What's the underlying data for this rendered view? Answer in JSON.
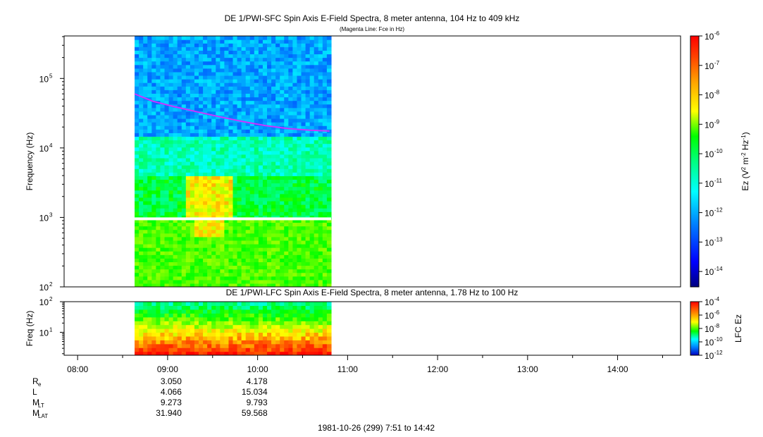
{
  "chart_data": [
    {
      "type": "heatmap",
      "title": "DE 1/PWI-SFC  Spin Axis E-Field Spectra, 8 meter antenna, 104 Hz to 409 kHz",
      "subtitle": "(Magenta Line: Fce in Hz)",
      "ylabel": "Frequency (Hz)",
      "yscale": "log",
      "ylim": [
        100,
        409000
      ],
      "yticks": [
        {
          "base": "10",
          "exp": "2"
        },
        {
          "base": "10",
          "exp": "3"
        },
        {
          "base": "10",
          "exp": "4"
        },
        {
          "base": "10",
          "exp": "5"
        }
      ],
      "xlim": [
        "07:51",
        "14:42"
      ],
      "data_span": [
        "08:38",
        "10:49"
      ],
      "colorbar": {
        "label_parts": [
          "Ez (V",
          "2",
          " m",
          "-2",
          " Hz",
          "-1",
          ")"
        ],
        "scale": "log",
        "range": [
          3e-15,
          1e-06
        ],
        "ticks": [
          "-6",
          "-7",
          "-8",
          "-9",
          "-10",
          "-11",
          "-12",
          "-13",
          "-14"
        ]
      },
      "series": [
        {
          "name": "Fce",
          "color": "#cc33ff",
          "x": [
            "08:38",
            "08:50",
            "09:05",
            "09:20",
            "09:35",
            "09:50",
            "10:05",
            "10:20",
            "10:35",
            "10:48"
          ],
          "y": [
            60000,
            47000,
            39000,
            33000,
            28000,
            24000,
            21000,
            19000,
            18000,
            17500
          ]
        }
      ]
    },
    {
      "type": "heatmap",
      "title": "DE 1/PWI-LFC  Spin Axis E-Field Spectra, 8 meter antenna, 1.78 Hz to 100 Hz",
      "ylabel": "Freq (Hz)",
      "yscale": "log",
      "ylim": [
        1.78,
        100
      ],
      "yticks": [
        {
          "base": "10",
          "exp": "1"
        },
        {
          "base": "10",
          "exp": "2"
        }
      ],
      "xlim": [
        "07:51",
        "14:42"
      ],
      "data_span": [
        "08:38",
        "10:49"
      ],
      "colorbar": {
        "label": "LFC Ez",
        "scale": "log",
        "range": [
          1e-12,
          0.0001
        ],
        "ticks": [
          "-4",
          "-6",
          "-8",
          "-10",
          "-12"
        ]
      }
    }
  ],
  "time_axis": {
    "ticks": [
      "08:00",
      "09:00",
      "10:00",
      "11:00",
      "12:00",
      "13:00",
      "14:00"
    ]
  },
  "ephemeris": {
    "rows": [
      {
        "label": "R",
        "sub": "e",
        "values": [
          "3.050",
          "4.178"
        ]
      },
      {
        "label": "L",
        "sub": "",
        "values": [
          "4.066",
          "15.034"
        ]
      },
      {
        "label": "M",
        "sub": "LT",
        "values": [
          "9.273",
          "9.793"
        ]
      },
      {
        "label": "M",
        "sub": "LAT",
        "values": [
          "31.940",
          "59.568"
        ]
      }
    ]
  },
  "footer": "1981-10-26 (299) 7:51 to 14:42",
  "colors": {
    "magenta_line": "#cc33ff",
    "colormap": [
      "#000080",
      "#0000ff",
      "#0080ff",
      "#00ffff",
      "#00ff80",
      "#00ff00",
      "#80ff00",
      "#ffff00",
      "#ffa000",
      "#ff4000",
      "#ff0000"
    ]
  }
}
